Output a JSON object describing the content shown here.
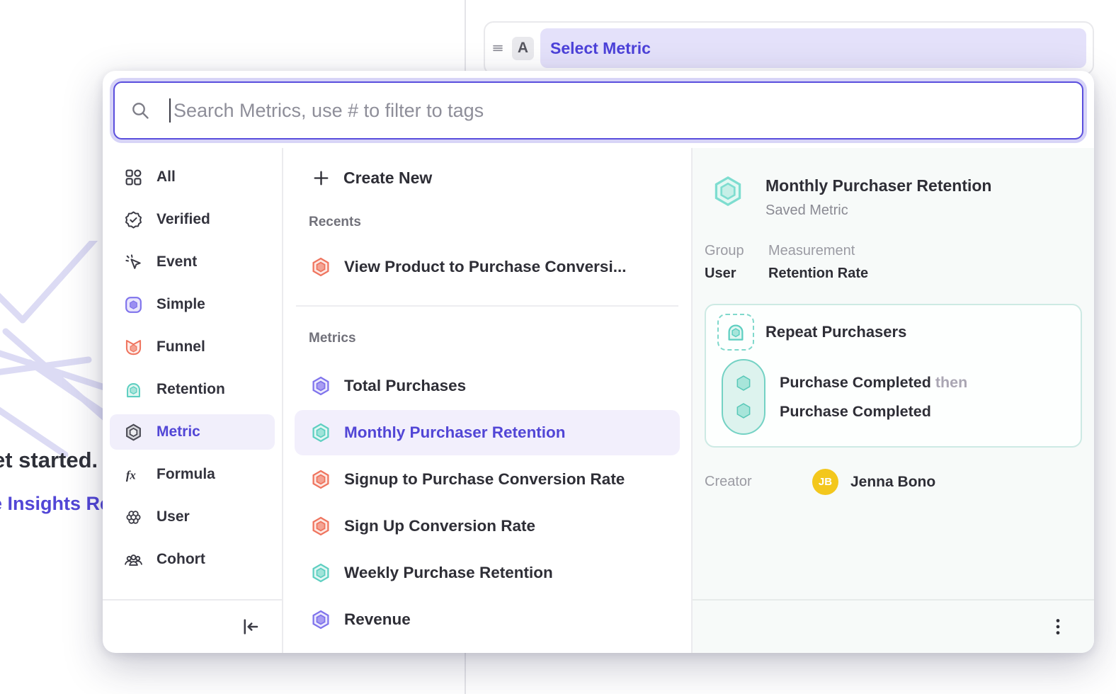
{
  "background": {
    "row_badge": "A",
    "row_title": "Select Metric",
    "teaser_line1": "et started.",
    "teaser_line2": "e Insights Re"
  },
  "modal": {
    "search": {
      "placeholder": "Search Metrics, use # to filter to tags"
    },
    "sidebar": {
      "items": [
        {
          "label": "All",
          "icon": "grid-icon",
          "selected": false
        },
        {
          "label": "Verified",
          "icon": "verified-icon",
          "selected": false
        },
        {
          "label": "Event",
          "icon": "event-icon",
          "selected": false
        },
        {
          "label": "Simple",
          "icon": "simple-icon",
          "selected": false
        },
        {
          "label": "Funnel",
          "icon": "funnel-icon",
          "selected": false
        },
        {
          "label": "Retention",
          "icon": "retention-icon",
          "selected": false
        },
        {
          "label": "Metric",
          "icon": "metric-icon",
          "selected": true
        },
        {
          "label": "Formula",
          "icon": "formula-icon",
          "selected": false
        },
        {
          "label": "User",
          "icon": "user-icon",
          "selected": false
        },
        {
          "label": "Cohort",
          "icon": "cohort-icon",
          "selected": false
        }
      ]
    },
    "list": {
      "create_new_label": "Create New",
      "recents_label": "Recents",
      "recent_items": [
        {
          "label": "View Product to Purchase Conversi...",
          "icon_color": "coral",
          "selected": false
        }
      ],
      "metrics_label": "Metrics",
      "metric_items": [
        {
          "label": "Total Purchases",
          "icon_color": "purple",
          "selected": false
        },
        {
          "label": "Monthly Purchaser Retention",
          "icon_color": "teal",
          "selected": true
        },
        {
          "label": "Signup to Purchase Conversion Rate",
          "icon_color": "coral",
          "selected": false
        },
        {
          "label": "Sign Up Conversion Rate",
          "icon_color": "coral",
          "selected": false
        },
        {
          "label": "Weekly Purchase Retention",
          "icon_color": "teal",
          "selected": false
        },
        {
          "label": "Revenue",
          "icon_color": "purple",
          "selected": false
        }
      ]
    },
    "detail": {
      "title": "Monthly Purchaser Retention",
      "type": "Saved Metric",
      "group_label": "Group",
      "group_value": "User",
      "measurement_label": "Measurement",
      "measurement_value": "Retention Rate",
      "definition": {
        "name": "Repeat Purchasers",
        "step_a": "Purchase Completed",
        "connector": "then",
        "step_b": "Purchase Completed"
      },
      "creator_label": "Creator",
      "creator_initials": "JB",
      "creator_name": "Jenna Bono"
    }
  },
  "colors": {
    "accent_purple": "#5246d6",
    "teal": "#5ecfc1",
    "coral": "#ef745e",
    "purple_icon": "#7f73ec",
    "avatar_yellow": "#f3c71d",
    "selected_row_bg": "#f2effc"
  }
}
